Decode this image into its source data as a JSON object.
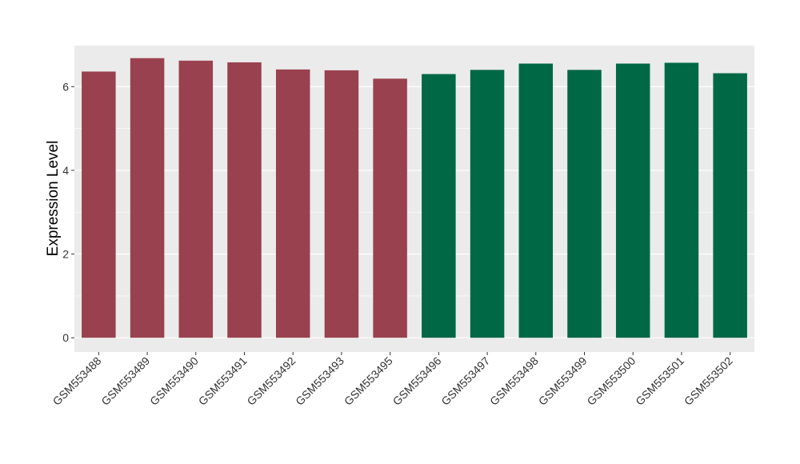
{
  "chart_data": {
    "type": "bar",
    "title": "",
    "xlabel": "",
    "ylabel": "Expression Level",
    "ylim": [
      -0.34,
      6.98
    ],
    "yticks": [
      0,
      2,
      4,
      6
    ],
    "grid": true,
    "legend": "none",
    "categories": [
      "GSM553488",
      "GSM553489",
      "GSM553490",
      "GSM553491",
      "GSM553492",
      "GSM553493",
      "GSM553495",
      "GSM553496",
      "GSM553497",
      "GSM553498",
      "GSM553499",
      "GSM553500",
      "GSM553501",
      "GSM553502"
    ],
    "values": [
      6.36,
      6.68,
      6.62,
      6.58,
      6.41,
      6.39,
      6.19,
      6.3,
      6.4,
      6.55,
      6.4,
      6.55,
      6.57,
      6.32
    ],
    "bar_colors": [
      "#99414e",
      "#99414e",
      "#99414e",
      "#99414e",
      "#99414e",
      "#99414e",
      "#99414e",
      "#006844",
      "#006844",
      "#006844",
      "#006844",
      "#006844",
      "#006844",
      "#006844"
    ],
    "panel_color": "#ebebeb",
    "grid_color": "#ffffff"
  }
}
